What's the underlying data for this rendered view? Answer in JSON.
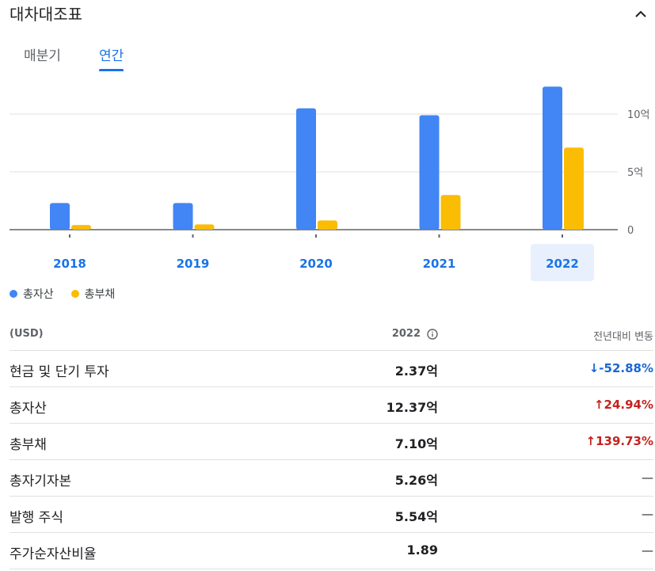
{
  "header": {
    "title": "대차대조표",
    "collapse_icon": "chevron-up-icon"
  },
  "tabs": [
    {
      "label": "매분기",
      "active": false
    },
    {
      "label": "연간",
      "active": true
    }
  ],
  "chart_data": {
    "type": "bar",
    "categories": [
      "2018",
      "2019",
      "2020",
      "2021",
      "2022"
    ],
    "selected_category": "2022",
    "series": [
      {
        "name": "총자산",
        "color": "#4285f4",
        "values": [
          0.23,
          0.23,
          1.05,
          0.99,
          1.237
        ]
      },
      {
        "name": "총부채",
        "color": "#fbbc04",
        "values": [
          0.04,
          0.045,
          0.08,
          0.3,
          0.71
        ]
      }
    ],
    "y_ticks": [
      {
        "value": 0,
        "label": "0"
      },
      {
        "value": 0.5,
        "label": "5억"
      },
      {
        "value": 1.0,
        "label": "10억"
      }
    ],
    "ylim": [
      0,
      1.25
    ],
    "grid": true,
    "legend": "bottom-left"
  },
  "table": {
    "header": {
      "unit": "(USD)",
      "year": "2022",
      "change": "전년대비 변동"
    },
    "rows": [
      {
        "label": "현금 및 단기 투자",
        "value": "2.37억",
        "change": "-52.88%",
        "direction": "down"
      },
      {
        "label": "총자산",
        "value": "12.37억",
        "change": "24.94%",
        "direction": "up"
      },
      {
        "label": "총부채",
        "value": "7.10억",
        "change": "139.73%",
        "direction": "up"
      },
      {
        "label": "총자기자본",
        "value": "5.26억",
        "change": "—",
        "direction": "none"
      },
      {
        "label": "발행 주식",
        "value": "5.54억",
        "change": "—",
        "direction": "none"
      },
      {
        "label": "주가순자산비율",
        "value": "1.89",
        "change": "—",
        "direction": "none"
      }
    ]
  }
}
